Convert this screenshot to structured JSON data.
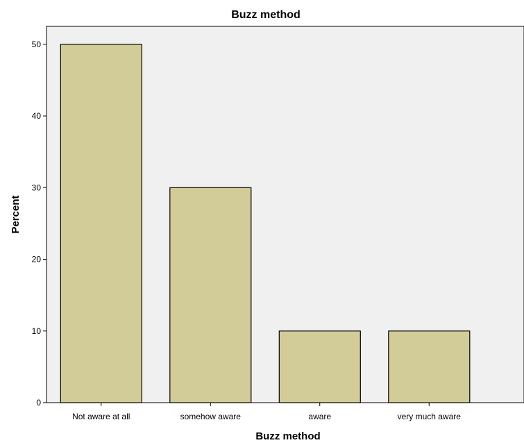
{
  "chart_data": {
    "type": "bar",
    "title": "Buzz method",
    "xlabel": "Buzz method",
    "ylabel": "Percent",
    "categories": [
      "Not aware at all",
      "somehow aware",
      "aware",
      "very much aware"
    ],
    "values": [
      50,
      30,
      10,
      10
    ],
    "ylim": [
      0,
      52.5
    ],
    "yticks": [
      0,
      10,
      20,
      30,
      40,
      50
    ],
    "grid": false,
    "legend": "none"
  },
  "colors": {
    "bar_fill": "#d2cc98",
    "bar_stroke": "#000000",
    "plot_background": "#f0f0f0",
    "page_background": "#ffffff",
    "axis": "#000000"
  }
}
